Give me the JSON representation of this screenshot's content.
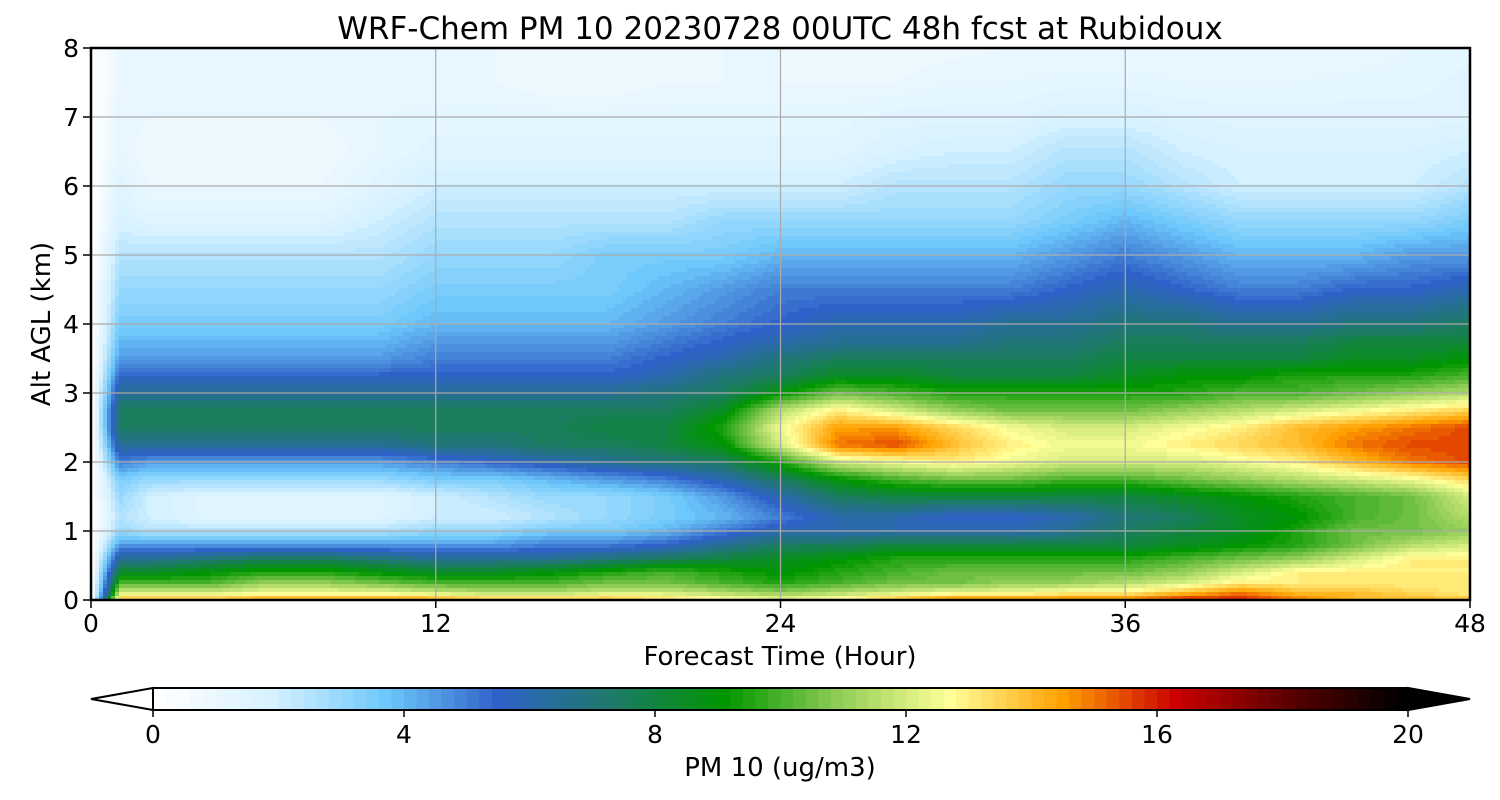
{
  "chart_data": {
    "type": "heatmap",
    "subtype": "time-height filled contour",
    "title": "WRF-Chem PM 10  20230728 00UTC 48h fcst at Rubidoux",
    "xlabel": "Forecast Time (Hour)",
    "ylabel": "Alt AGL (km)",
    "xlim": [
      0,
      48
    ],
    "ylim": [
      0,
      8
    ],
    "xticks": [
      "0",
      "12",
      "24",
      "36",
      "48"
    ],
    "yticks": [
      "0",
      "1",
      "2",
      "3",
      "4",
      "5",
      "6",
      "7",
      "8"
    ],
    "grid": true,
    "colorbar": {
      "label": "PM 10  (ug/m3)",
      "range": [
        0,
        20
      ],
      "ticks": [
        "0",
        "4",
        "8",
        "12",
        "16",
        "20"
      ],
      "extend": "both",
      "orientation": "horizontal",
      "placement": "bottom",
      "colors": [
        "#ffffff",
        "#d6f1ff",
        "#6ec8fb",
        "#2f62c8",
        "#1e7a6a",
        "#009600",
        "#8fcc55",
        "#ffff99",
        "#ffa000",
        "#cc0000",
        "#5a0000",
        "#000000"
      ]
    },
    "x_hours": [
      0,
      1,
      2,
      4,
      6,
      8,
      10,
      12,
      14,
      16,
      18,
      20,
      22,
      24,
      26,
      28,
      30,
      32,
      34,
      36,
      38,
      40,
      42,
      44,
      46,
      48
    ],
    "z_km": [
      0,
      0.1,
      0.25,
      0.4,
      0.6,
      0.8,
      1.0,
      1.2,
      1.5,
      1.75,
      2.0,
      2.25,
      2.5,
      2.75,
      3.0,
      3.25,
      3.5,
      3.75,
      4.0,
      4.5,
      5.0,
      5.5,
      6.0,
      6.5,
      7.0,
      7.5,
      8.0
    ],
    "pm10_values": [
      [
        0,
        14,
        14,
        14,
        14.5,
        14.5,
        14.5,
        14.5,
        14,
        14,
        14,
        13.5,
        13,
        12.5,
        13,
        14,
        15,
        15,
        15,
        15,
        16,
        16,
        15,
        14,
        14,
        14
      ],
      [
        0,
        12,
        12,
        12,
        12.5,
        12.5,
        12.5,
        12,
        11.5,
        11.5,
        12,
        12,
        11.5,
        11,
        11.5,
        12,
        12.5,
        12.5,
        13,
        13,
        14,
        15,
        14,
        14,
        13.5,
        13
      ],
      [
        0,
        10,
        10,
        10,
        11,
        11,
        10.5,
        10,
        10,
        10,
        10.5,
        10.5,
        10,
        9.5,
        10,
        10.5,
        10.5,
        11,
        11,
        11.5,
        12,
        13,
        13,
        13,
        13,
        13
      ],
      [
        0,
        8.5,
        8.5,
        9,
        9.5,
        9.5,
        9,
        8.5,
        8.5,
        9,
        9.5,
        10,
        9.5,
        9,
        9.5,
        10,
        10.5,
        10.5,
        10.5,
        10.5,
        11,
        12,
        13,
        13,
        13,
        13
      ],
      [
        0,
        6.5,
        6.5,
        7,
        7.5,
        7.5,
        7,
        6.5,
        6.5,
        6.5,
        7,
        7.5,
        8,
        8.5,
        9,
        9.5,
        9.5,
        9.5,
        9.5,
        9.5,
        10,
        10.5,
        11,
        12,
        13,
        13
      ],
      [
        0,
        4.5,
        4.5,
        4.5,
        4.5,
        4.5,
        4.5,
        4.5,
        4.5,
        5,
        5,
        5.5,
        6.5,
        7.5,
        7.5,
        8,
        8,
        8,
        8,
        8,
        8.5,
        9,
        9.5,
        10.5,
        11.5,
        12
      ],
      [
        0,
        3,
        2.5,
        2.5,
        2.5,
        2.5,
        2.5,
        3,
        3,
        3.5,
        3.5,
        4,
        5,
        6,
        6,
        6,
        6,
        6,
        6.5,
        7.5,
        8,
        8.5,
        9.5,
        10.5,
        10.5,
        11
      ],
      [
        0,
        2.5,
        2,
        1.5,
        1.5,
        1.5,
        1.5,
        2,
        2,
        2.5,
        3,
        3.5,
        4,
        5,
        6,
        6,
        5.5,
        5.5,
        6,
        7,
        7.5,
        8.5,
        9,
        10,
        10.5,
        11.5
      ],
      [
        0,
        3,
        2,
        1.5,
        1.5,
        1.5,
        1.5,
        2,
        2.5,
        3,
        3,
        3.5,
        4.5,
        6,
        7.5,
        8,
        8,
        8,
        8,
        8,
        8.5,
        9,
        9.5,
        10,
        10.5,
        12
      ],
      [
        0,
        3.5,
        3,
        3,
        3,
        3,
        3,
        3.5,
        3.5,
        4,
        4.5,
        5,
        6,
        7.5,
        9,
        10,
        10.5,
        10.5,
        10,
        10,
        10.5,
        11,
        11.5,
        12,
        12.5,
        13.5
      ],
      [
        0,
        5,
        4.5,
        4.5,
        4.5,
        4.5,
        4.5,
        5,
        5.5,
        6,
        6.5,
        7,
        7.5,
        9.5,
        12,
        12.5,
        13,
        12.5,
        12,
        12,
        12,
        12.5,
        13,
        14,
        15,
        15.5
      ],
      [
        0,
        6.5,
        6.5,
        6.5,
        6.5,
        6.5,
        6.5,
        7,
        7,
        7.5,
        7.5,
        8,
        9,
        12,
        15,
        15.5,
        14,
        13,
        12.5,
        12.5,
        13,
        13.5,
        14,
        15,
        15.5,
        15.5
      ],
      [
        0,
        7.5,
        7.5,
        7.5,
        7.5,
        7.5,
        7.5,
        7.5,
        7.5,
        7.5,
        8,
        8,
        9.5,
        12.5,
        14.5,
        14.5,
        13.5,
        12.5,
        12,
        12,
        12.5,
        13,
        14,
        14.5,
        15,
        15.5
      ],
      [
        0,
        7.5,
        7.5,
        7.5,
        7.5,
        7.5,
        7.5,
        7.5,
        7.5,
        7.5,
        7.5,
        7.5,
        8.5,
        11.5,
        13,
        12,
        11,
        10.5,
        10.5,
        10.5,
        11,
        11.5,
        12,
        12.5,
        13,
        13.5
      ],
      [
        0,
        6.5,
        6.5,
        6.5,
        6.5,
        6.5,
        6.5,
        6.5,
        6.5,
        6.5,
        6.5,
        7,
        7.5,
        9,
        10.5,
        10,
        9.5,
        9.5,
        9.5,
        9.5,
        9.5,
        10,
        10,
        10.5,
        11,
        11.5
      ],
      [
        0,
        5.5,
        5.5,
        5.5,
        5.5,
        5.5,
        5.5,
        5.5,
        5.5,
        5.5,
        5.5,
        6,
        7,
        7.5,
        8.5,
        8.5,
        8,
        8,
        8,
        8.5,
        9,
        9,
        9.5,
        9.5,
        9.5,
        10
      ],
      [
        0,
        4.5,
        4.5,
        4.5,
        4.5,
        4.5,
        4.5,
        5,
        5,
        5,
        5,
        5.5,
        6,
        7,
        7.5,
        7.5,
        7.5,
        7.5,
        7.5,
        8,
        8,
        8,
        8,
        8.5,
        8.5,
        9
      ],
      [
        0,
        4,
        4,
        4,
        4,
        4,
        4,
        4.5,
        4.5,
        4.5,
        4.5,
        5,
        5.5,
        6,
        6.5,
        6.5,
        6.5,
        7,
        7,
        7.5,
        7.5,
        7.5,
        7.5,
        8,
        8,
        8
      ],
      [
        0,
        3.5,
        3.5,
        3.5,
        3.5,
        3.5,
        3.5,
        4,
        4,
        4,
        4,
        4.5,
        5,
        5.5,
        6,
        6,
        6,
        6.5,
        6.5,
        7,
        7,
        6.5,
        6.5,
        7,
        7,
        7.5
      ],
      [
        0,
        3,
        3,
        3,
        3,
        3,
        3,
        3.5,
        3.5,
        3.5,
        3.5,
        4,
        4.5,
        5,
        5,
        5,
        5,
        5,
        5.5,
        6,
        5.5,
        5,
        5,
        5.5,
        5.5,
        6
      ],
      [
        0,
        2.5,
        2.5,
        2.5,
        2.5,
        2.5,
        2.5,
        3,
        3,
        3,
        3.5,
        3.5,
        3.5,
        4,
        4,
        4,
        4,
        4,
        4.5,
        5,
        4.5,
        4,
        4,
        4,
        4.5,
        4.5
      ],
      [
        0,
        1.8,
        1.5,
        1.5,
        1.5,
        1.5,
        2,
        2.5,
        2.5,
        2.5,
        2.5,
        2.5,
        3,
        3,
        3,
        3,
        3,
        3,
        3.5,
        4,
        3.5,
        3,
        3,
        3,
        3,
        3.5
      ],
      [
        0,
        1.5,
        1,
        1,
        1,
        1,
        1.5,
        2,
        2,
        2,
        2,
        2,
        2,
        2,
        2,
        2.5,
        2.5,
        2.5,
        3,
        3,
        2.5,
        2,
        2,
        2,
        2,
        2.5
      ],
      [
        0,
        1.2,
        0.8,
        0.8,
        0.8,
        0.8,
        1.2,
        1.5,
        1.5,
        1.5,
        1.5,
        1.5,
        1.5,
        1.5,
        1.5,
        1.8,
        2,
        2,
        2.5,
        2.5,
        2,
        1.8,
        1.8,
        1.8,
        1.8,
        2
      ],
      [
        0,
        1.2,
        1,
        1,
        1,
        1,
        1.2,
        1.3,
        1.3,
        1.3,
        1.3,
        1.3,
        1.3,
        1.3,
        1.3,
        1.5,
        1.5,
        1.5,
        1.8,
        1.8,
        1.6,
        1.5,
        1.5,
        1.5,
        1.5,
        1.5
      ],
      [
        0,
        1,
        1,
        1,
        1,
        1,
        1,
        1,
        1,
        0.8,
        0.8,
        1,
        1,
        1,
        1,
        1,
        1.2,
        1.2,
        1.3,
        1.3,
        1.2,
        1.2,
        1.2,
        1.3,
        1.3,
        1.5
      ],
      [
        0,
        1,
        1,
        1,
        1,
        1,
        1,
        1,
        1,
        0.8,
        0.8,
        0.9,
        1,
        1,
        0.9,
        0.8,
        0.9,
        1,
        1,
        1,
        1,
        1,
        1,
        1,
        1.2,
        1.3
      ]
    ]
  }
}
